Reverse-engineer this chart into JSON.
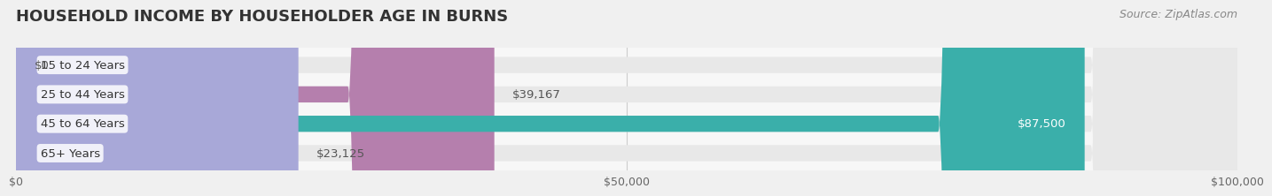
{
  "title": "HOUSEHOLD INCOME BY HOUSEHOLDER AGE IN BURNS",
  "source": "Source: ZipAtlas.com",
  "categories": [
    "15 to 24 Years",
    "25 to 44 Years",
    "45 to 64 Years",
    "65+ Years"
  ],
  "values": [
    0,
    39167,
    87500,
    23125
  ],
  "value_labels": [
    "$0",
    "$39,167",
    "$87,500",
    "$23,125"
  ],
  "bar_colors": [
    "#a8c4e0",
    "#b57fad",
    "#3aafaa",
    "#a8a8d8"
  ],
  "bar_height": 0.55,
  "xlim": [
    0,
    100000
  ],
  "xticks": [
    0,
    50000,
    100000
  ],
  "xtick_labels": [
    "$0",
    "$50,000",
    "$100,000"
  ],
  "background_color": "#f0f0f0",
  "plot_bg_color": "#f7f7f7",
  "title_fontsize": 13,
  "label_fontsize": 9.5,
  "tick_fontsize": 9,
  "source_fontsize": 9
}
